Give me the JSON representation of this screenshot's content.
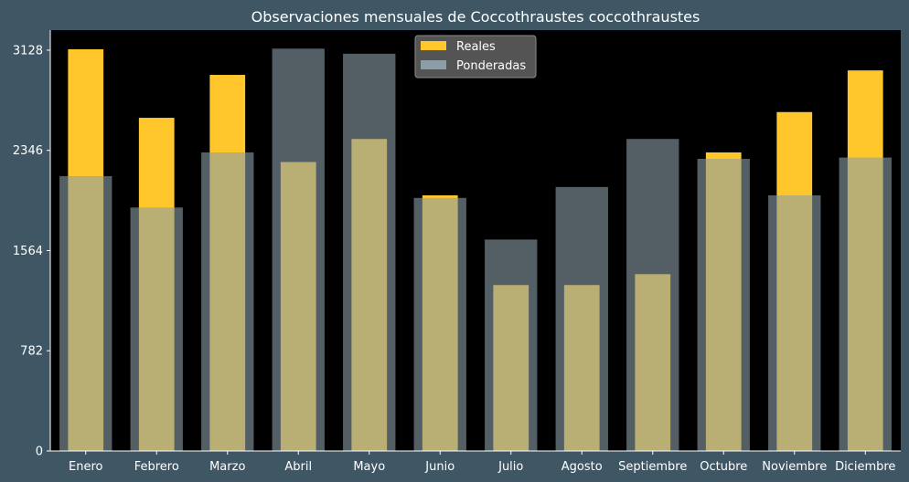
{
  "chart_data": {
    "type": "bar",
    "title": "Observaciones mensuales de Coccothraustes coccothraustes",
    "xlabel": "",
    "ylabel": "",
    "categories": [
      "Enero",
      "Febrero",
      "Marzo",
      "Abril",
      "Mayo",
      "Junio",
      "Julio",
      "Agosto",
      "Septiembre",
      "Octubre",
      "Noviembre",
      "Diciembre"
    ],
    "series": [
      {
        "name": "Reales",
        "color": "#ffc72c",
        "values": [
          3135,
          2600,
          2935,
          2255,
          2435,
          1995,
          1295,
          1295,
          1380,
          2330,
          2645,
          2970
        ]
      },
      {
        "name": "Ponderadas",
        "color": "#8b9ea6",
        "values": [
          2145,
          1900,
          2330,
          3140,
          3100,
          1975,
          1650,
          2060,
          2435,
          2280,
          1995,
          2290
        ]
      }
    ],
    "ylim": [
      0,
      3128
    ],
    "yticks": [
      0,
      782,
      1564,
      2346,
      3128
    ],
    "grid": false,
    "legend_position": "top-center",
    "plot_background": "#000000",
    "figure_background": "#3f5765"
  }
}
